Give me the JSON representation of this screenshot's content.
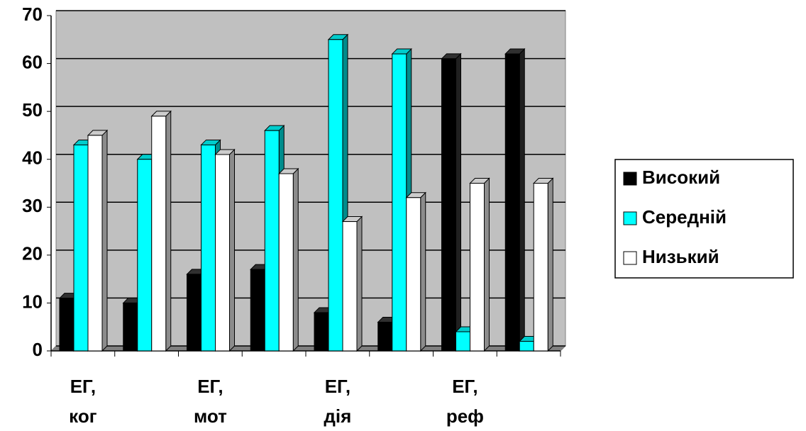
{
  "chart_data": {
    "type": "bar3d",
    "categories": [
      "ЕГ, ког",
      null,
      "ЕГ, мот",
      null,
      "ЕГ, дія",
      null,
      "ЕГ, реф",
      null
    ],
    "series": [
      {
        "name": "Високий",
        "color": "#000000",
        "values": [
          11,
          10,
          16,
          17,
          8,
          6,
          61,
          62
        ]
      },
      {
        "name": "Середній",
        "color": "#00ffff",
        "values": [
          43,
          40,
          43,
          46,
          65,
          62,
          4,
          2
        ]
      },
      {
        "name": "Низький",
        "color": "#ffffff",
        "values": [
          45,
          49,
          41,
          37,
          27,
          32,
          35,
          35
        ]
      }
    ],
    "ylim": [
      0,
      70
    ],
    "yticks": [
      0,
      10,
      20,
      30,
      40,
      50,
      60,
      70
    ],
    "grid": true
  }
}
